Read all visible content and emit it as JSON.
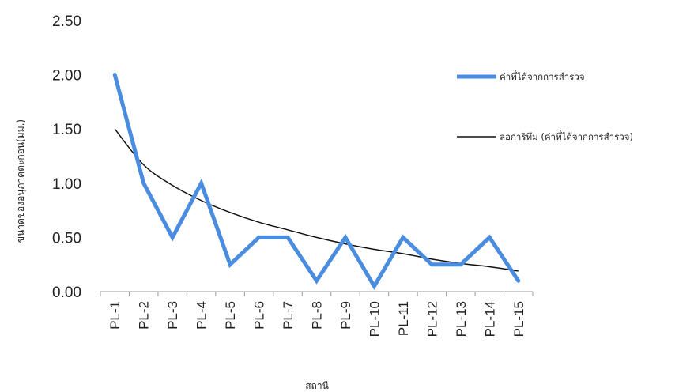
{
  "chart_data": {
    "type": "line",
    "title": "",
    "xlabel": "สถานี",
    "ylabel": "ขนาดของอนุภาคตะกอน(มม.)",
    "categories": [
      "PL-1",
      "PL-2",
      "PL-3",
      "PL-4",
      "PL-5",
      "PL-6",
      "PL-7",
      "PL-8",
      "PL-9",
      "PL-10",
      "PL-11",
      "PL-12",
      "PL-13",
      "PL-14",
      "PL-15"
    ],
    "ylim": [
      0,
      2.5
    ],
    "yticks": [
      "0.00",
      "0.50",
      "1.00",
      "1.50",
      "2.00",
      "2.50"
    ],
    "grid": false,
    "legend_position": "right",
    "series": [
      {
        "name": "ค่าที่ได้จากการสำรวจ",
        "color": "#4a8de0",
        "values": [
          2.0,
          1.0,
          0.5,
          1.0,
          0.25,
          0.5,
          0.5,
          0.1,
          0.5,
          0.05,
          0.5,
          0.25,
          0.25,
          0.5,
          0.1
        ]
      },
      {
        "name": "ลอการิทึม (ค่าที่ได้จากการสำรวจ)",
        "color": "#111111",
        "values": [
          1.5,
          1.17,
          0.98,
          0.84,
          0.73,
          0.64,
          0.57,
          0.5,
          0.44,
          0.39,
          0.35,
          0.3,
          0.26,
          0.23,
          0.19
        ]
      }
    ]
  }
}
